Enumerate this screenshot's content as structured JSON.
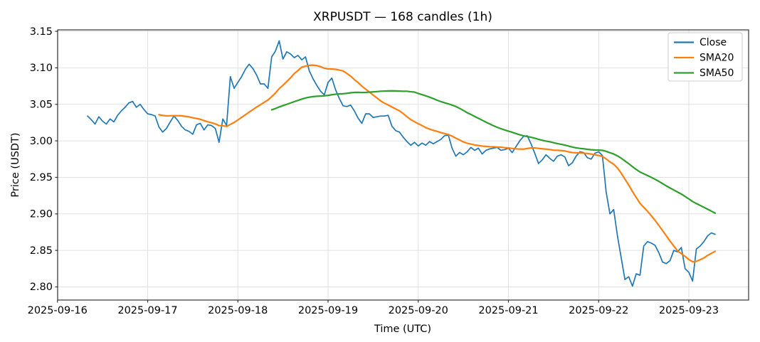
{
  "chart_data": {
    "type": "line",
    "title": "XRPUSDT — 168 candles (1h)",
    "xlabel": "Time (UTC)",
    "ylabel": "Price (USDT)",
    "symbol": "XRPUSDT",
    "candle_count": 168,
    "interval": "1h",
    "grid": true,
    "legend_position": "upper right",
    "ylim": [
      2.782,
      3.152
    ],
    "y_ticks": [
      2.8,
      2.85,
      2.9,
      2.95,
      3.0,
      3.05,
      3.1,
      3.15
    ],
    "x_tick_labels": [
      "2025-09-16",
      "2025-09-17",
      "2025-09-18",
      "2025-09-19",
      "2025-09-20",
      "2025-09-21",
      "2025-09-22",
      "2025-09-23"
    ],
    "x_tick_candle_indices": [
      -8,
      16,
      40,
      64,
      88,
      112,
      136,
      160
    ],
    "series": [
      {
        "name": "Close",
        "color": "#1f77b4",
        "kind": "values",
        "line_width": 1.7,
        "values": [
          3.034,
          3.029,
          3.023,
          3.033,
          3.027,
          3.023,
          3.03,
          3.026,
          3.035,
          3.041,
          3.046,
          3.052,
          3.054,
          3.046,
          3.05,
          3.043,
          3.037,
          3.036,
          3.034,
          3.019,
          3.012,
          3.017,
          3.026,
          3.034,
          3.028,
          3.02,
          3.015,
          3.013,
          3.009,
          3.022,
          3.024,
          3.015,
          3.022,
          3.021,
          3.017,
          2.998,
          3.03,
          3.021,
          3.088,
          3.072,
          3.08,
          3.088,
          3.098,
          3.105,
          3.099,
          3.09,
          3.078,
          3.078,
          3.072,
          3.115,
          3.123,
          3.137,
          3.112,
          3.122,
          3.119,
          3.114,
          3.117,
          3.111,
          3.115,
          3.096,
          3.085,
          3.076,
          3.068,
          3.063,
          3.08,
          3.086,
          3.07,
          3.058,
          3.048,
          3.047,
          3.049,
          3.041,
          3.031,
          3.024,
          3.037,
          3.037,
          3.032,
          3.033,
          3.034,
          3.034,
          3.035,
          3.02,
          3.014,
          3.012,
          3.005,
          2.999,
          2.994,
          2.998,
          2.993,
          2.997,
          2.994,
          2.999,
          2.996,
          2.999,
          3.002,
          3.007,
          3.008,
          2.99,
          2.979,
          2.984,
          2.981,
          2.985,
          2.991,
          2.987,
          2.99,
          2.982,
          2.987,
          2.989,
          2.99,
          2.991,
          2.987,
          2.988,
          2.99,
          2.984,
          2.992,
          3.0,
          3.006,
          3.007,
          2.996,
          2.983,
          2.969,
          2.974,
          2.981,
          2.976,
          2.972,
          2.979,
          2.981,
          2.978,
          2.966,
          2.97,
          2.979,
          2.985,
          2.984,
          2.977,
          2.975,
          2.983,
          2.985,
          2.98,
          2.93,
          2.9,
          2.906,
          2.87,
          2.84,
          2.81,
          2.814,
          2.801,
          2.818,
          2.816,
          2.856,
          2.862,
          2.86,
          2.857,
          2.847,
          2.834,
          2.832,
          2.836,
          2.85,
          2.848,
          2.854,
          2.825,
          2.82,
          2.808,
          2.852,
          2.856,
          2.862,
          2.87,
          2.874,
          2.872
        ]
      },
      {
        "name": "SMA20",
        "color": "#ff7f0e",
        "kind": "sma",
        "period": 20,
        "line_width": 2.2
      },
      {
        "name": "SMA50",
        "color": "#2ca02c",
        "kind": "sma",
        "period": 50,
        "line_width": 2.2
      }
    ]
  },
  "legend": {
    "items": [
      {
        "label": "Close",
        "color": "#1f77b4"
      },
      {
        "label": "SMA20",
        "color": "#ff7f0e"
      },
      {
        "label": "SMA50",
        "color": "#2ca02c"
      }
    ]
  },
  "style": {
    "grid_color": "#e1e1e1",
    "spine_color": "#333333",
    "legend_border_color": "#cccccc",
    "background": "#ffffff"
  }
}
